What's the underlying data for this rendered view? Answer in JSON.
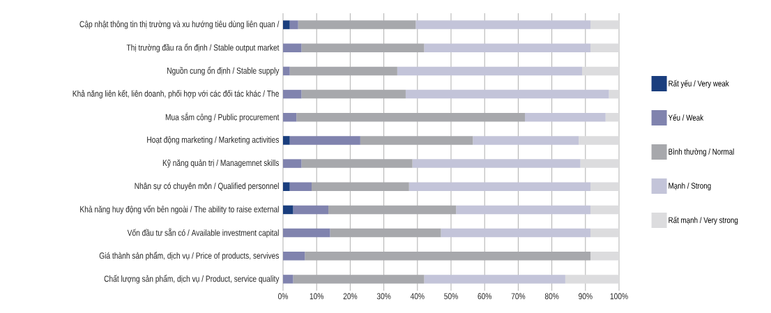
{
  "chart_data": {
    "type": "bar",
    "orientation": "horizontal",
    "stacked": true,
    "categories": [
      "Cập nhật thông tin thị trường và xu hướng tiêu dùng liên quan  /",
      "Thị trường đầu ra ổn định  / Stable output market",
      "Nguồn cung ổn định  / Stable supply",
      "Khả năng liên kết, liên doanh, phối hợp với các đối tác khác  / The",
      "Mua sắm công  / Public procurement",
      "Hoạt động marketing  / Marketing activities",
      "Kỹ năng quản trị  / Managemnet skills",
      "Nhân sự có chuyên môn  / Qualified personnel",
      "Khả năng huy động vốn bên ngoài  / The ability to raise external",
      "Vốn đầu tư sẵn có  / Available investment capital",
      "Giá thành sản phẩm, dịch vụ  / Price of products, servives",
      "Chất lượng sản phẩm, dịch vụ  / Product, service quality"
    ],
    "series": [
      {
        "name": "Rất yếu  / Very weak",
        "color": "#1a3e7e",
        "values": [
          2,
          0,
          0,
          0,
          0,
          2,
          0,
          2,
          3,
          0,
          0,
          0
        ]
      },
      {
        "name": "Yếu  / Weak",
        "color": "#8083ae",
        "values": [
          2.5,
          5.5,
          2,
          5.5,
          4,
          21,
          5.5,
          6.5,
          10.5,
          14,
          6.5,
          3
        ]
      },
      {
        "name": "Bình thường  / Normal",
        "color": "#a7a8ac",
        "values": [
          35,
          36.5,
          32,
          31,
          68,
          33.5,
          33,
          29,
          38,
          33,
          85,
          39
        ]
      },
      {
        "name": "Mạnh  / Strong",
        "color": "#c3c4d9",
        "values": [
          52,
          49.5,
          55,
          60.5,
          24,
          31.5,
          50,
          54,
          40,
          44.5,
          0,
          42
        ]
      },
      {
        "name": "Rất mạnh  / Very strong",
        "color": "#dcdcde",
        "values": [
          8.5,
          8.5,
          11,
          3,
          4,
          12,
          11.5,
          8.5,
          8.5,
          8.5,
          8.5,
          16
        ]
      }
    ],
    "xlim": [
      0,
      100
    ],
    "xticks": [
      {
        "value": 0,
        "label": "0%"
      },
      {
        "value": 10,
        "label": "10%"
      },
      {
        "value": 20,
        "label": "20%"
      },
      {
        "value": 30,
        "label": "30%"
      },
      {
        "value": 40,
        "label": "40%"
      },
      {
        "value": 50,
        "label": "50%"
      },
      {
        "value": 60,
        "label": "60%"
      },
      {
        "value": 70,
        "label": "70%"
      },
      {
        "value": 80,
        "label": "80%"
      },
      {
        "value": 90,
        "label": "90%"
      },
      {
        "value": 100,
        "label": "100%"
      }
    ],
    "grid": "x",
    "legend": "right"
  }
}
